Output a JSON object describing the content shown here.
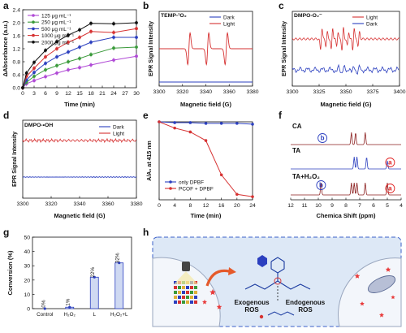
{
  "panels": {
    "a": {
      "letter": "a"
    },
    "b": {
      "letter": "b"
    },
    "c": {
      "letter": "c"
    },
    "d": {
      "letter": "d"
    },
    "e": {
      "letter": "e"
    },
    "f": {
      "letter": "f"
    },
    "g": {
      "letter": "g"
    },
    "h": {
      "letter": "h"
    }
  },
  "colors": {
    "blue": "#2b3fbf",
    "red": "#d63232",
    "dark_red": "#8b1f1f",
    "purple": "#b04ad6",
    "green": "#3a9a3a",
    "red_sub": "#e02020",
    "panel_h_bg": "#dde8f6",
    "panel_h_border": "#3a5fc8"
  },
  "chart_data": [
    {
      "panel": "a",
      "type": "line",
      "xlabel": "Time (min)",
      "ylabel": "ΔAbsorbance (a.u.)",
      "xlim": [
        0,
        30
      ],
      "ylim": [
        0.0,
        2.4
      ],
      "xticks": [
        "0",
        "3",
        "6",
        "9",
        "12",
        "15",
        "18",
        "21",
        "24",
        "27",
        "30"
      ],
      "yticks": [
        "0.0",
        "0.4",
        "0.8",
        "1.2",
        "1.6",
        "2.0",
        "2.4"
      ],
      "x": [
        0,
        1,
        3,
        6,
        9,
        12,
        15,
        18,
        24,
        30
      ],
      "series": [
        {
          "name": "125 μg mL⁻¹",
          "color": "#b04ad6",
          "values": [
            0,
            0.12,
            0.22,
            0.34,
            0.45,
            0.55,
            0.62,
            0.7,
            0.85,
            0.97
          ]
        },
        {
          "name": "250 μg mL⁻¹",
          "color": "#3a9a3a",
          "values": [
            0,
            0.17,
            0.35,
            0.55,
            0.68,
            0.8,
            0.9,
            1.02,
            1.22,
            1.25
          ]
        },
        {
          "name": "500 μg mL⁻¹",
          "color": "#2b3fbf",
          "values": [
            0,
            0.24,
            0.47,
            0.75,
            0.95,
            1.1,
            1.25,
            1.4,
            1.55,
            1.55
          ]
        },
        {
          "name": "1000 μg mL⁻¹",
          "color": "#d63232",
          "values": [
            0,
            0.35,
            0.6,
            0.95,
            1.2,
            1.4,
            1.55,
            1.73,
            1.7,
            1.82
          ]
        },
        {
          "name": "2000 μg mL⁻¹",
          "color": "#111111",
          "values": [
            0,
            0.45,
            0.78,
            1.15,
            1.42,
            1.62,
            1.78,
            1.98,
            1.97,
            2.0
          ]
        }
      ]
    },
    {
      "panel": "b",
      "type": "line",
      "label": "TEMP-¹O₂",
      "xlabel": "Magnetic field (G)",
      "ylabel": "EPR Signal Intensity",
      "xlim": [
        3300,
        3380
      ],
      "xticks": [
        "3300",
        "3320",
        "3340",
        "3360",
        "3380"
      ],
      "series": [
        {
          "name": "Dark",
          "color": "#2b3fbf"
        },
        {
          "name": "Light",
          "color": "#d63232"
        }
      ],
      "peaks_x": [
        3325.5,
        3341.5,
        3357.5
      ]
    },
    {
      "panel": "c",
      "type": "line",
      "label": "DMPO-O₂⁻",
      "xlabel": "Magnetic field (G)",
      "ylabel": "EPR Signal Intensity",
      "xlim": [
        3300,
        3400
      ],
      "xticks": [
        "3300",
        "3325",
        "3350",
        "3375",
        "3400"
      ],
      "series": [
        {
          "name": "Light",
          "color": "#d63232"
        },
        {
          "name": "Dark",
          "color": "#2b3fbf"
        }
      ]
    },
    {
      "panel": "d",
      "type": "line",
      "label": "DMPO-•OH",
      "xlabel": "Magnetic field (G)",
      "ylabel": "EPR Signal Intensity",
      "xlim": [
        3300,
        3380
      ],
      "xticks": [
        "3300",
        "3320",
        "3340",
        "3360",
        "3380"
      ],
      "series": [
        {
          "name": "Dark",
          "color": "#2b3fbf"
        },
        {
          "name": "Light",
          "color": "#d63232"
        }
      ]
    },
    {
      "panel": "e",
      "type": "line",
      "xlabel": "Time (min)",
      "ylabel": "A/A₀ at 415 nm",
      "xlim": [
        0,
        24
      ],
      "ylim": [
        0.0,
        1.0
      ],
      "xticks": [
        "0",
        "4",
        "8",
        "12",
        "16",
        "20",
        "24"
      ],
      "yticks": [
        "0.0",
        "0.2",
        "0.4",
        "0.6",
        "0.8",
        "1.0"
      ],
      "series": [
        {
          "name": "only DPBF",
          "color": "#2b3fbf",
          "x": [
            0,
            4,
            8,
            12,
            16,
            20,
            24
          ],
          "values": [
            1.0,
            0.99,
            0.99,
            0.98,
            0.98,
            0.98,
            0.97
          ]
        },
        {
          "name": "PCOF + DPBF",
          "color": "#d63232",
          "x": [
            0,
            4,
            8,
            12,
            16,
            20,
            24
          ],
          "values": [
            1.0,
            0.92,
            0.87,
            0.76,
            0.32,
            0.07,
            0.04
          ]
        }
      ]
    },
    {
      "panel": "f",
      "type": "line",
      "xlabel": "Chemica Shift (ppm)",
      "xlim": [
        12,
        4
      ],
      "xticks": [
        "12",
        "11",
        "10",
        "9",
        "8",
        "7",
        "6",
        "5",
        "4"
      ],
      "traces": [
        {
          "name": "CA"
        },
        {
          "name": "TA"
        },
        {
          "name": "TA+H₂O₂"
        }
      ],
      "markers": [
        "b",
        "a",
        "b",
        "a"
      ]
    },
    {
      "panel": "g",
      "type": "bar",
      "ylabel": "Conversion (%)",
      "ylim": [
        0,
        50
      ],
      "yticks": [
        "0",
        "10",
        "20",
        "30",
        "40",
        "50"
      ],
      "categories": [
        "Control",
        "H₂O₂",
        "L",
        "H₂O₂+L"
      ],
      "values": [
        0,
        1,
        22,
        32
      ],
      "data_labels": [
        "0%",
        "1%",
        "22%",
        "32%"
      ]
    }
  ],
  "diagram_h": {
    "exogenous": "Exogenous\nROS",
    "endogenous": "Endogenous\nROS"
  }
}
